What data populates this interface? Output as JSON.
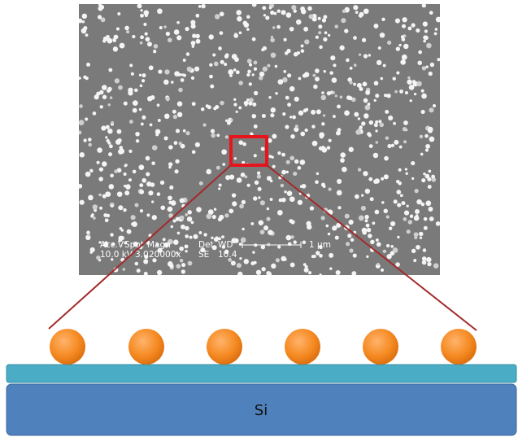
{
  "sem_info": {
    "labels": [
      "Acc.V",
      "Spot",
      "Magn",
      "Det",
      "WD"
    ],
    "values": [
      "10.0 kV",
      "3.0",
      "20000x",
      "SE",
      "10.4"
    ],
    "scale_bar": "1 μm"
  },
  "substrate": {
    "label": "Si"
  }
}
